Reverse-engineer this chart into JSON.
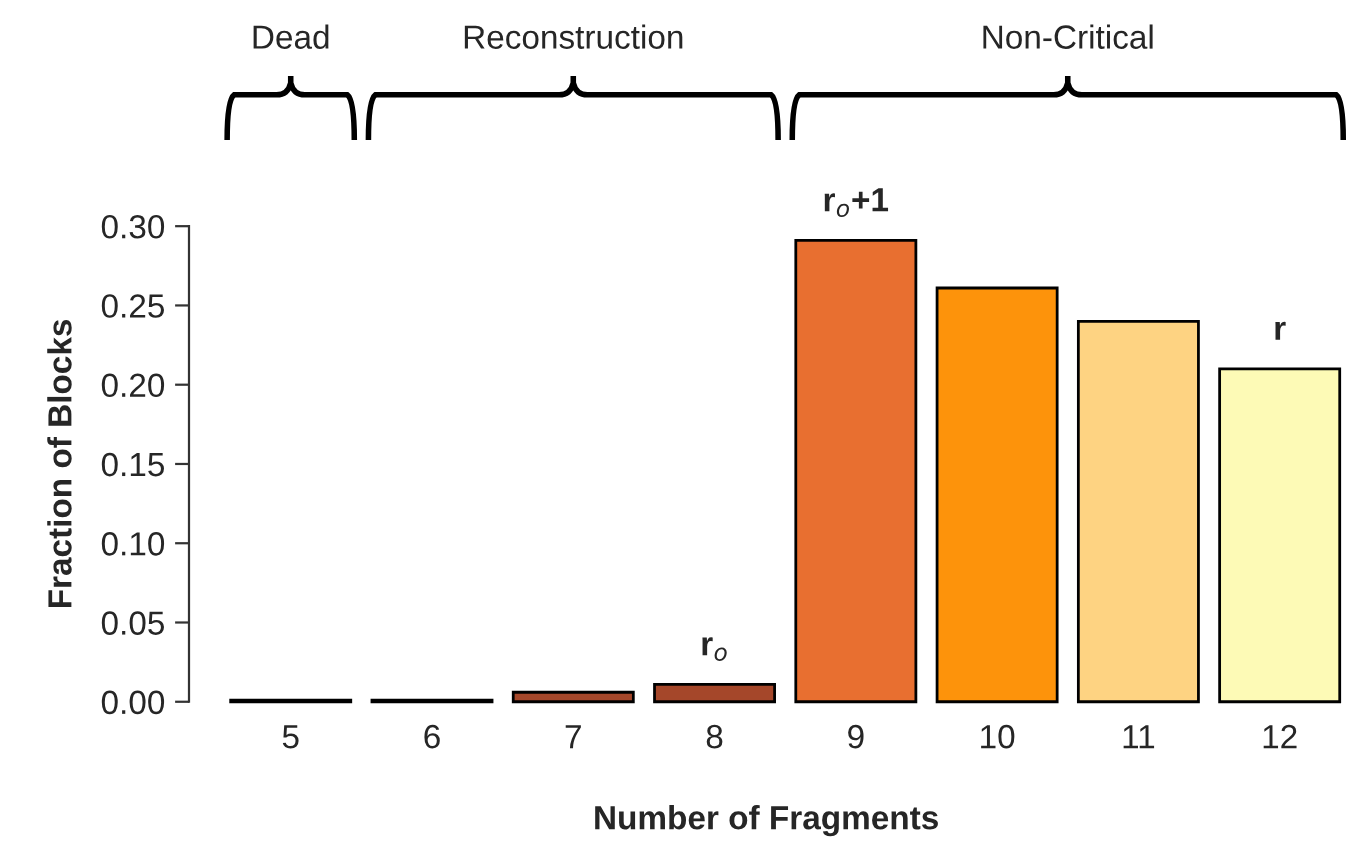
{
  "chart_data": {
    "type": "bar",
    "xlabel": "Number of Fragments",
    "ylabel": "Fraction of Blocks",
    "categories": [
      "5",
      "6",
      "7",
      "8",
      "9",
      "10",
      "11",
      "12"
    ],
    "values": [
      0.001,
      0.001,
      0.006,
      0.011,
      0.291,
      0.261,
      0.24,
      0.21
    ],
    "colors": [
      "#7a2e16",
      "#7a2e16",
      "#a5472a",
      "#a5472a",
      "#e86f30",
      "#fd930b",
      "#fed382",
      "#fdfab6"
    ],
    "ylim": [
      0,
      0.3
    ],
    "yticks": [
      {
        "value": 0,
        "label": "0.00"
      },
      {
        "value": 0.05,
        "label": "0.05"
      },
      {
        "value": 0.1,
        "label": "0.10"
      },
      {
        "value": 0.15,
        "label": "0.15"
      },
      {
        "value": 0.2,
        "label": "0.20"
      },
      {
        "value": 0.25,
        "label": "0.25"
      },
      {
        "value": 0.3,
        "label": "0.30"
      }
    ],
    "grid": false,
    "annotations": [
      {
        "text": "r$_{o}$",
        "x": "8",
        "y": 0.011
      },
      {
        "text": "r$_{o}$+1",
        "x": "9",
        "y": 0.291
      },
      {
        "text": "r",
        "x": "12",
        "y": 0.21
      },
      "Dead",
      "Reconstruction",
      "Non-Critical"
    ]
  }
}
